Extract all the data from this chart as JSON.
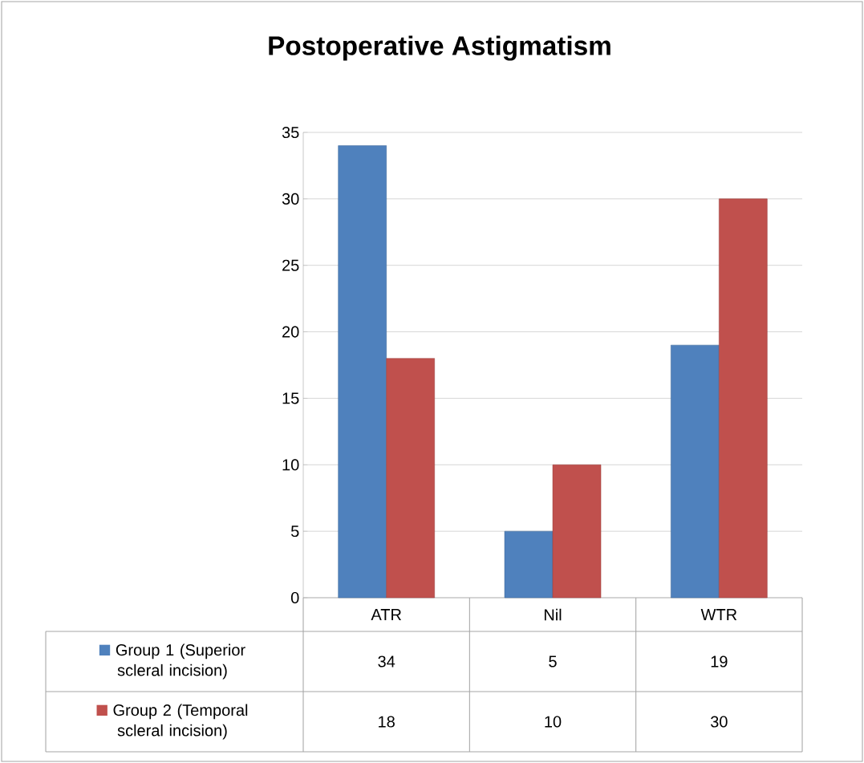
{
  "chart_data": {
    "type": "bar",
    "title": "Postoperative Astigmatism",
    "categories": [
      "ATR",
      "Nil",
      "WTR"
    ],
    "series": [
      {
        "name": "Group 1 (Superior scleral incision)",
        "color": "#4f81bd",
        "values": [
          34,
          5,
          19
        ]
      },
      {
        "name": "Group 2 (Temporal scleral incision)",
        "color": "#c0504d",
        "values": [
          18,
          10,
          30
        ]
      }
    ],
    "ylim": [
      0,
      35
    ],
    "yticks": [
      0,
      5,
      10,
      15,
      20,
      25,
      30,
      35
    ],
    "grid": "y",
    "legend": "bottom",
    "data_labels": true
  }
}
